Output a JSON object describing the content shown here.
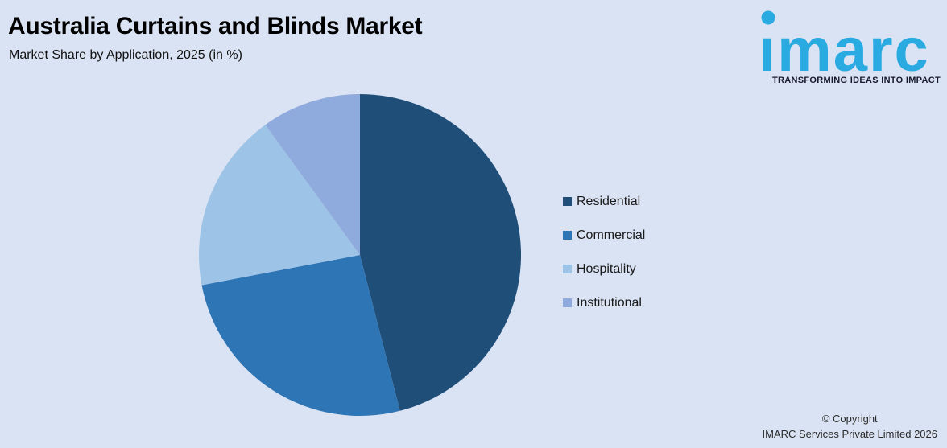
{
  "background_color": "#DAE3F3",
  "header": {
    "title": "Australia Curtains and Blinds Market",
    "subtitle": "Market Share by Application, 2025 (in %)"
  },
  "logo": {
    "brand": "imarc",
    "tagline": "TRANSFORMING IDEAS INTO IMPACT",
    "brand_color": "#29ABE2"
  },
  "chart_data": {
    "type": "pie",
    "title": "Australia Curtains and Blinds Market — Market Share by Application, 2025 (in %)",
    "unit": "%",
    "start_angle_deg": 0,
    "direction": "clockwise",
    "legend_position": "right",
    "data_labels_shown": false,
    "slices": [
      {
        "label": "Residential",
        "value": 46,
        "color": "#1F4E79"
      },
      {
        "label": "Commercial",
        "value": 26,
        "color": "#2E75B6"
      },
      {
        "label": "Hospitality",
        "value": 18,
        "color": "#9DC3E6"
      },
      {
        "label": "Institutional",
        "value": 10,
        "color": "#8FAADC"
      }
    ]
  },
  "footer": {
    "copyright_line1": "© Copyright",
    "copyright_line2": "IMARC Services Private Limited 2026"
  }
}
